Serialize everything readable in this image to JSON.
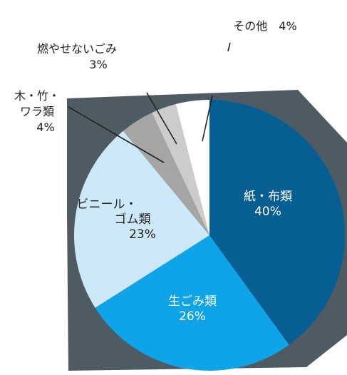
{
  "chart_data": {
    "type": "pie",
    "start": "12 o'clock, clockwise",
    "slices": [
      {
        "label_lines": [
          "紙・布類"
        ],
        "value_text": "40%",
        "value": 40,
        "color": "#065e92"
      },
      {
        "label_lines": [
          "生ごみ類"
        ],
        "value_text": "26%",
        "value": 26,
        "color": "#0fa3e8"
      },
      {
        "label_lines": [
          "ビニール・",
          "ゴム類"
        ],
        "value_text": "23%",
        "value": 23,
        "color": "#cde9f9"
      },
      {
        "label_lines": [
          "木・竹・",
          "ワラ類"
        ],
        "value_text": "4%",
        "value": 4,
        "color": "#a5a5a5"
      },
      {
        "label_lines": [
          "燃やせないごみ"
        ],
        "value_text": "3%",
        "value": 3,
        "color": "#cccccc"
      },
      {
        "label_lines": [
          "その他"
        ],
        "value_text": "4%",
        "value": 4,
        "color": "#ffffff"
      }
    ],
    "side_color": "#4f5b62"
  }
}
